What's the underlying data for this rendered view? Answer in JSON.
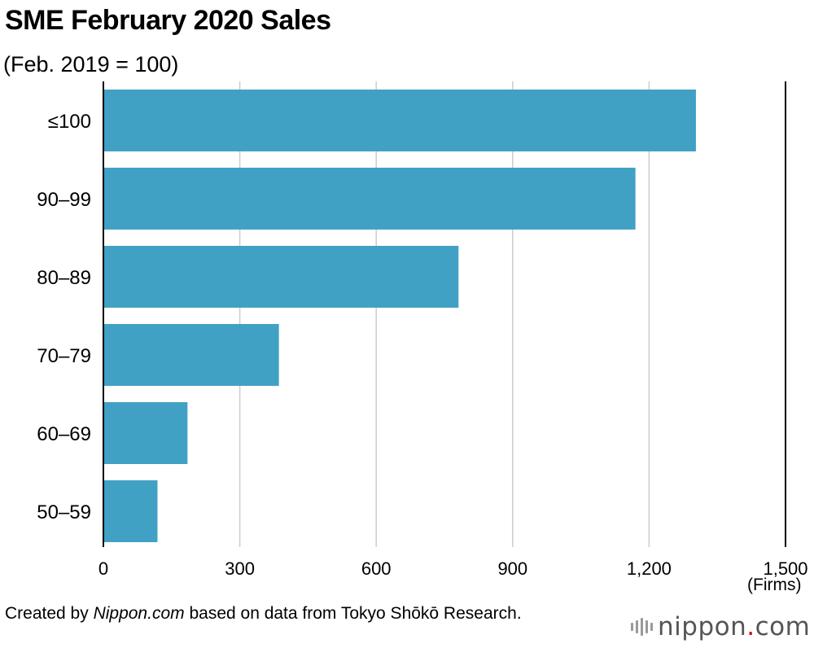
{
  "title": "SME February 2020 Sales",
  "subtitle": "(Feb. 2019 = 100)",
  "footer": {
    "prefix": "Created by ",
    "source_name": "Nippon.com",
    "suffix": " based on data from Tokyo Shōkō Research."
  },
  "logo": {
    "name": "nippon",
    "dot": ".",
    "tld": "com"
  },
  "colors": {
    "bar": "#41a1c4",
    "grid": "#cccccc",
    "axis": "#000000"
  },
  "chart_data": {
    "type": "bar",
    "orientation": "horizontal",
    "title": "SME February 2020 Sales",
    "subtitle": "(Feb. 2019 = 100)",
    "categories": [
      "≤100",
      "90–99",
      "80–89",
      "70–79",
      "60–69",
      "50–59"
    ],
    "values": [
      1303,
      1170,
      781,
      386,
      185,
      119
    ],
    "xlim": [
      0,
      1500
    ],
    "xticks": [
      0,
      300,
      600,
      900,
      1200,
      1500
    ],
    "xtick_labels": [
      "0",
      "300",
      "600",
      "900",
      "1,200",
      "1,500"
    ],
    "xunit": "(Firms)",
    "grid": true
  }
}
